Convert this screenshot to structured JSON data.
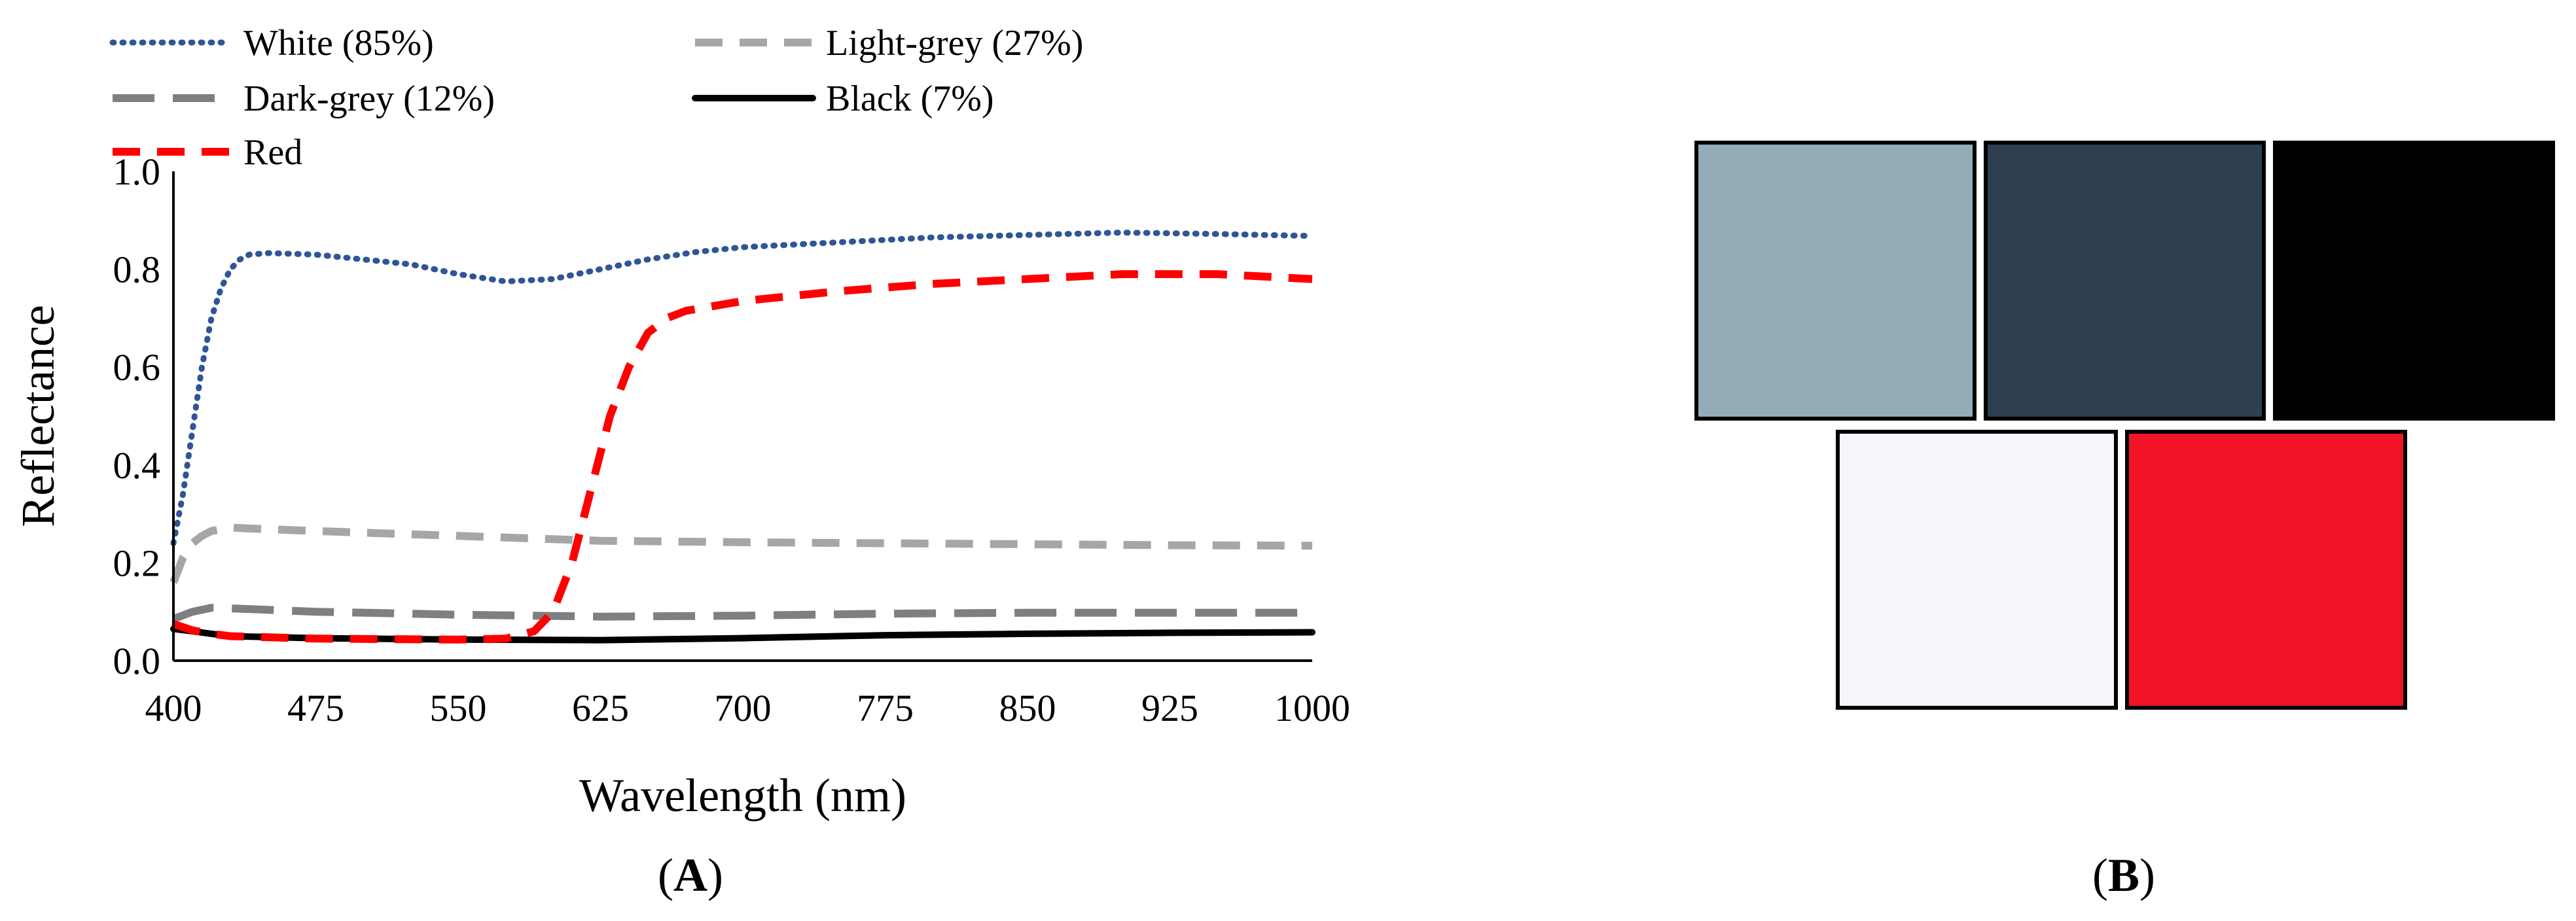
{
  "chart_data": {
    "type": "line",
    "xlabel": "Wavelength (nm)",
    "ylabel": "Reflectance",
    "xlim": [
      400,
      1000
    ],
    "ylim": [
      0,
      1.0
    ],
    "x_ticks": [
      "400",
      "475",
      "550",
      "625",
      "700",
      "775",
      "850",
      "925",
      "1000"
    ],
    "y_ticks": [
      "0.0",
      "0.2",
      "0.4",
      "0.6",
      "0.8",
      "1.0"
    ],
    "grid": false,
    "legend_position": "top",
    "series": [
      {
        "name": "White (85%)",
        "color": "#2f5597",
        "style": "dotted",
        "x": [
          400,
          405,
          410,
          415,
          420,
          425,
          430,
          435,
          440,
          450,
          475,
          500,
          525,
          550,
          575,
          600,
          625,
          650,
          675,
          700,
          750,
          800,
          850,
          900,
          950,
          1000
        ],
        "y": [
          0.24,
          0.34,
          0.47,
          0.6,
          0.7,
          0.76,
          0.8,
          0.82,
          0.83,
          0.833,
          0.83,
          0.82,
          0.81,
          0.79,
          0.775,
          0.78,
          0.8,
          0.82,
          0.835,
          0.845,
          0.855,
          0.865,
          0.87,
          0.875,
          0.872,
          0.868
        ]
      },
      {
        "name": "Light-grey (27%)",
        "color": "#a6a6a6",
        "style": "dashed",
        "x": [
          400,
          405,
          410,
          415,
          420,
          430,
          440,
          475,
          550,
          625,
          700,
          775,
          850,
          925,
          1000
        ],
        "y": [
          0.16,
          0.21,
          0.24,
          0.255,
          0.265,
          0.272,
          0.27,
          0.265,
          0.255,
          0.245,
          0.242,
          0.24,
          0.238,
          0.236,
          0.235
        ]
      },
      {
        "name": "Dark-grey (12%)",
        "color": "#7f7f7f",
        "style": "longdash",
        "x": [
          400,
          410,
          420,
          430,
          475,
          550,
          625,
          700,
          775,
          850,
          925,
          1000
        ],
        "y": [
          0.085,
          0.1,
          0.108,
          0.107,
          0.1,
          0.094,
          0.09,
          0.092,
          0.096,
          0.098,
          0.098,
          0.098
        ]
      },
      {
        "name": "Black (7%)",
        "color": "#000000",
        "style": "solid",
        "x": [
          400,
          410,
          420,
          430,
          475,
          550,
          625,
          700,
          775,
          850,
          925,
          1000
        ],
        "y": [
          0.065,
          0.06,
          0.055,
          0.05,
          0.046,
          0.043,
          0.042,
          0.046,
          0.052,
          0.055,
          0.057,
          0.058
        ]
      },
      {
        "name": "Red",
        "color": "#ff0000",
        "style": "dashed",
        "x": [
          400,
          410,
          420,
          430,
          475,
          550,
          575,
          590,
          600,
          610,
          620,
          630,
          640,
          650,
          660,
          670,
          700,
          750,
          800,
          850,
          900,
          950,
          1000
        ],
        "y": [
          0.075,
          0.062,
          0.055,
          0.05,
          0.045,
          0.043,
          0.045,
          0.06,
          0.1,
          0.2,
          0.35,
          0.5,
          0.6,
          0.67,
          0.7,
          0.715,
          0.735,
          0.755,
          0.77,
          0.78,
          0.79,
          0.79,
          0.78
        ]
      }
    ]
  },
  "panels": {
    "a_label": "A",
    "b_label": "B"
  },
  "swatches": [
    {
      "name": "light-grey",
      "color": "#93acb8"
    },
    {
      "name": "dark-grey",
      "color": "#2d3f50"
    },
    {
      "name": "black",
      "color": "#000000"
    },
    {
      "name": "white",
      "color": "#f6f7fb"
    },
    {
      "name": "red",
      "color": "#f21326"
    }
  ]
}
